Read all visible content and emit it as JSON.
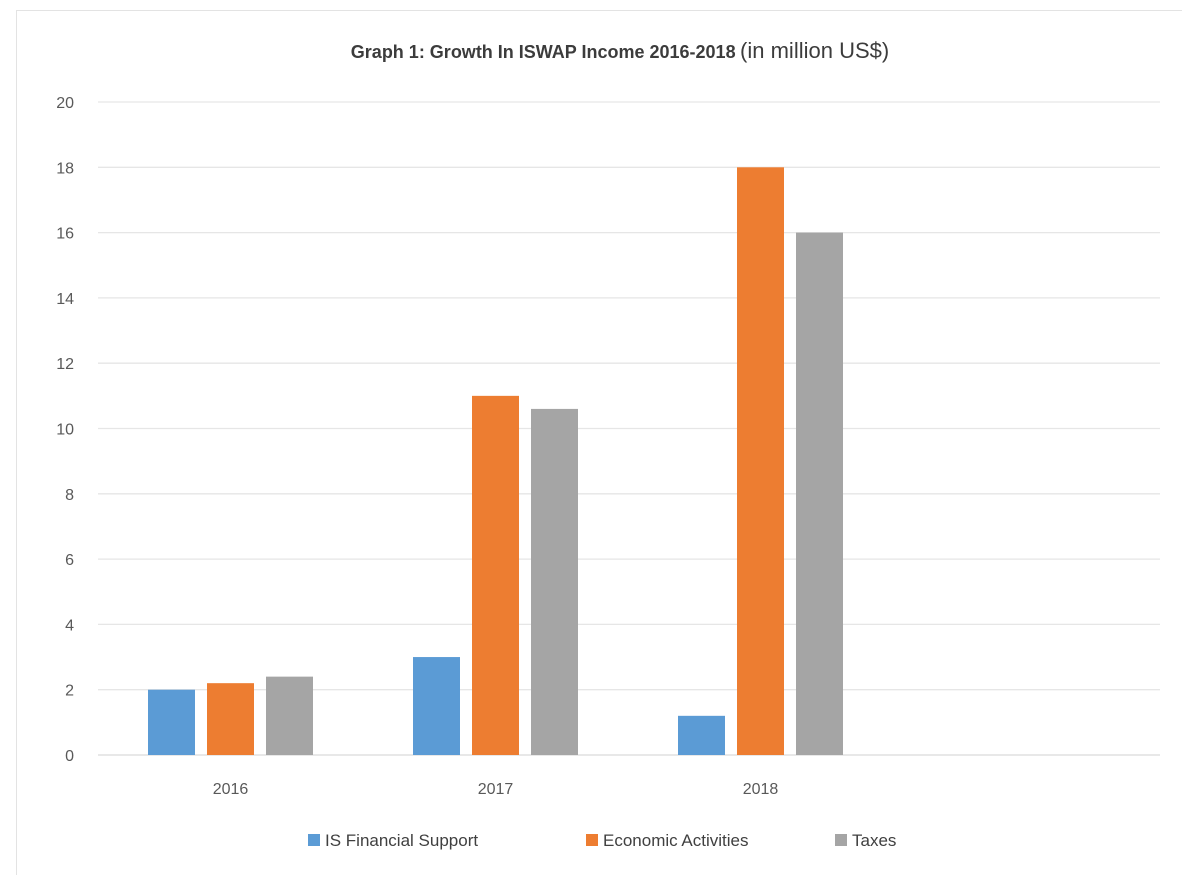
{
  "chart_data": {
    "type": "bar",
    "title": "Graph 1: Growth In ISWAP Income 2016-2018",
    "title_suffix": "(in million US$)",
    "categories": [
      "2016",
      "2017",
      "2018"
    ],
    "series": [
      {
        "name": "IS Financial Support",
        "color": "#5b9bd5",
        "values": [
          2,
          3,
          1.2
        ]
      },
      {
        "name": "Economic Activities",
        "color": "#ed7d31",
        "values": [
          2.2,
          11,
          18
        ]
      },
      {
        "name": "Taxes",
        "color": "#a5a5a5",
        "values": [
          2.4,
          10.6,
          16
        ]
      }
    ],
    "ylim": [
      0,
      20
    ],
    "yticks": [
      "0",
      "2",
      "4",
      "6",
      "8",
      "10",
      "12",
      "14",
      "16",
      "18",
      "20"
    ],
    "grid": true,
    "legend_position": "bottom"
  }
}
